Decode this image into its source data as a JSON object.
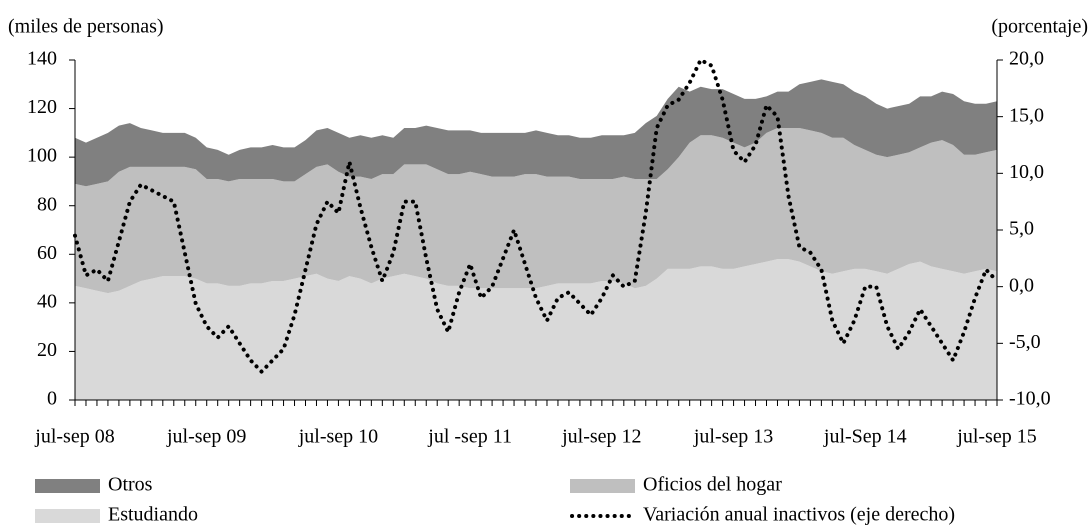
{
  "chart_data": {
    "type": "stacked-area-line",
    "y_label": "(miles de personas)",
    "y2_label": "(porcentaje)",
    "categories": [
      "jul-sep 08",
      null,
      null,
      null,
      null,
      null,
      null,
      null,
      null,
      null,
      null,
      null,
      "jul-sep 09",
      null,
      null,
      null,
      null,
      null,
      null,
      null,
      null,
      null,
      null,
      null,
      "jul-sep 10",
      null,
      null,
      null,
      null,
      null,
      null,
      null,
      null,
      null,
      null,
      null,
      "jul -sep 11",
      null,
      null,
      null,
      null,
      null,
      null,
      null,
      null,
      null,
      null,
      null,
      "jul-sep 12",
      null,
      null,
      null,
      null,
      null,
      null,
      null,
      null,
      null,
      null,
      null,
      "jul-sep 13",
      null,
      null,
      null,
      null,
      null,
      null,
      null,
      null,
      null,
      null,
      null,
      "jul-Sep 14",
      null,
      null,
      null,
      null,
      null,
      null,
      null,
      null,
      null,
      null,
      null,
      "jul-sep 15"
    ],
    "ylim": [
      0,
      140
    ],
    "yticks": [
      0,
      20,
      40,
      60,
      80,
      100,
      120,
      140
    ],
    "y2lim": [
      -10,
      20
    ],
    "y2ticks": [
      {
        "value": -10,
        "label": "-10,0"
      },
      {
        "value": -5,
        "label": "-5,0"
      },
      {
        "value": 0,
        "label": "0,0"
      },
      {
        "value": 5,
        "label": "5,0"
      },
      {
        "value": 10,
        "label": "10,0"
      },
      {
        "value": 15,
        "label": "15,0"
      },
      {
        "value": 20,
        "label": "20,0"
      }
    ],
    "series": [
      {
        "name": "Otros",
        "color": "#808080",
        "values": [
          19,
          18,
          19,
          20,
          19,
          18,
          16,
          15,
          14,
          14,
          14,
          13,
          13,
          12,
          11,
          12,
          13,
          13,
          14,
          14,
          14,
          14,
          15,
          15,
          16,
          16,
          17,
          17,
          16,
          15,
          15,
          15,
          16,
          17,
          18,
          18,
          17,
          17,
          18,
          18,
          18,
          17,
          18,
          18,
          17,
          17,
          17,
          17,
          18,
          18,
          17,
          19,
          23,
          26,
          29,
          29,
          21,
          20,
          19,
          20,
          20,
          20,
          18,
          15,
          15,
          15,
          18,
          20,
          22,
          23,
          22,
          22,
          22,
          21,
          20,
          20,
          20,
          21,
          19,
          20,
          21,
          22,
          21,
          20,
          20
        ]
      },
      {
        "name": "Oficios del hogar",
        "color": "#bfbfbf",
        "values": [
          42,
          42,
          44,
          46,
          49,
          49,
          47,
          46,
          45,
          45,
          45,
          45,
          43,
          43,
          43,
          44,
          43,
          43,
          42,
          41,
          40,
          42,
          44,
          47,
          45,
          41,
          42,
          43,
          43,
          42,
          45,
          46,
          47,
          47,
          46,
          46,
          48,
          47,
          46,
          46,
          46,
          47,
          47,
          45,
          44,
          44,
          43,
          43,
          42,
          42,
          44,
          45,
          44,
          41,
          41,
          46,
          52,
          54,
          54,
          54,
          52,
          49,
          50,
          53,
          54,
          54,
          55,
          56,
          57,
          56,
          55,
          51,
          49,
          48,
          48,
          47,
          46,
          47,
          51,
          53,
          52,
          49,
          48,
          48,
          50
        ]
      },
      {
        "name": "Estudiando",
        "color": "#d9d9d9",
        "values": [
          47,
          46,
          45,
          44,
          45,
          47,
          49,
          50,
          51,
          51,
          51,
          50,
          48,
          48,
          47,
          47,
          48,
          48,
          49,
          49,
          50,
          51,
          52,
          50,
          49,
          51,
          50,
          48,
          50,
          51,
          52,
          51,
          50,
          48,
          47,
          47,
          46,
          46,
          46,
          46,
          46,
          46,
          46,
          47,
          48,
          48,
          48,
          48,
          49,
          49,
          48,
          46,
          47,
          50,
          54,
          54,
          54,
          55,
          55,
          54,
          54,
          55,
          56,
          57,
          58,
          58,
          57,
          55,
          53,
          52,
          53,
          54,
          54,
          53,
          52,
          54,
          56,
          57,
          55,
          54,
          53,
          52,
          53,
          54,
          53
        ]
      },
      {
        "name": "Variación anual inactivos (eje derecho)",
        "color": "#000000",
        "axis": "y2",
        "values": [
          4.5,
          1,
          1.5,
          0.5,
          4,
          7.5,
          9,
          8.5,
          8,
          7.5,
          3,
          -1.5,
          -3.5,
          -4.5,
          -3.5,
          -5,
          -6.5,
          -7.5,
          -6.5,
          -5.5,
          -2.5,
          1.5,
          5.5,
          7.5,
          6.5,
          11,
          7,
          3.5,
          0.5,
          3,
          7.5,
          7.5,
          2.5,
          -2,
          -4,
          -0.5,
          2,
          -1,
          0,
          2.5,
          5,
          2,
          -1,
          -3,
          -1,
          -0.5,
          -1.5,
          -2.5,
          -1,
          1,
          0,
          0.5,
          6.5,
          14,
          16,
          16.5,
          18,
          20,
          19.5,
          16.5,
          12,
          11,
          12.5,
          16,
          15,
          8,
          3.5,
          3,
          1.5,
          -3,
          -5,
          -3,
          0,
          0,
          -3.5,
          -5.5,
          -4,
          -2,
          -3.5,
          -5,
          -6.5,
          -4,
          -1,
          1.5,
          0.5
        ]
      }
    ]
  }
}
